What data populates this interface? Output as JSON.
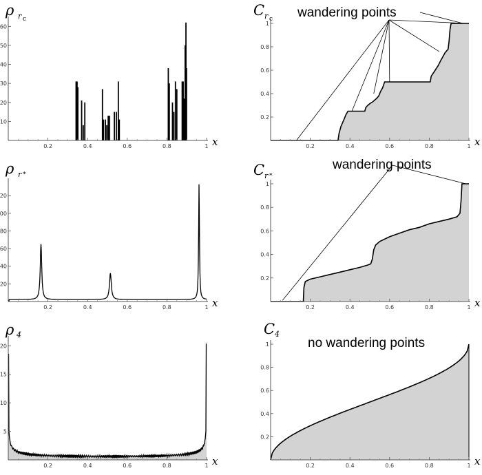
{
  "chart_data": [
    {
      "id": "rho_rc",
      "type": "histogram",
      "title": "ρ",
      "title_sub": "r",
      "title_subsub": "c",
      "xlabel": "x",
      "xlim": [
        0,
        1
      ],
      "ylim": [
        0,
        63
      ],
      "xticks": [
        0.2,
        0.4,
        0.6,
        0.8,
        1.0
      ],
      "yticks": [
        10,
        20,
        30,
        40,
        50,
        60
      ],
      "bars": [
        [
          0.342,
          31
        ],
        [
          0.347,
          31
        ],
        [
          0.351,
          28
        ],
        [
          0.37,
          21
        ],
        [
          0.378,
          8
        ],
        [
          0.386,
          20
        ],
        [
          0.475,
          27
        ],
        [
          0.48,
          11
        ],
        [
          0.49,
          11
        ],
        [
          0.497,
          8
        ],
        [
          0.504,
          13
        ],
        [
          0.511,
          13
        ],
        [
          0.535,
          15
        ],
        [
          0.545,
          15
        ],
        [
          0.555,
          31
        ],
        [
          0.56,
          11
        ],
        [
          0.807,
          38
        ],
        [
          0.812,
          30
        ],
        [
          0.828,
          20
        ],
        [
          0.835,
          15
        ],
        [
          0.843,
          31
        ],
        [
          0.85,
          27
        ],
        [
          0.877,
          31
        ],
        [
          0.882,
          31
        ],
        [
          0.887,
          22
        ],
        [
          0.892,
          50
        ],
        [
          0.896,
          62
        ],
        [
          0.899,
          38
        ]
      ]
    },
    {
      "id": "c_rc",
      "type": "area",
      "title": "C",
      "title_sub": "r",
      "title_subsub": "c",
      "xlabel": "x",
      "xlim": [
        0,
        1
      ],
      "ylim": [
        0,
        1
      ],
      "xticks": [
        0.2,
        0.4,
        0.6,
        0.8,
        1.0
      ],
      "yticks": [
        0.2,
        0.4,
        0.6,
        0.8,
        1.0
      ],
      "annotation": "wandering points",
      "steps": [
        [
          0,
          0
        ],
        [
          0.34,
          0
        ],
        [
          0.345,
          0.06
        ],
        [
          0.355,
          0.12
        ],
        [
          0.37,
          0.18
        ],
        [
          0.38,
          0.22
        ],
        [
          0.39,
          0.25
        ],
        [
          0.475,
          0.25
        ],
        [
          0.48,
          0.28
        ],
        [
          0.49,
          0.3
        ],
        [
          0.505,
          0.32
        ],
        [
          0.515,
          0.33
        ],
        [
          0.535,
          0.36
        ],
        [
          0.545,
          0.38
        ],
        [
          0.555,
          0.42
        ],
        [
          0.565,
          0.45
        ],
        [
          0.575,
          0.5
        ],
        [
          0.805,
          0.5
        ],
        [
          0.81,
          0.55
        ],
        [
          0.83,
          0.6
        ],
        [
          0.845,
          0.64
        ],
        [
          0.86,
          0.69
        ],
        [
          0.87,
          0.72
        ],
        [
          0.88,
          0.75
        ],
        [
          0.895,
          0.78
        ],
        [
          0.9,
          0.85
        ],
        [
          0.905,
          0.95
        ],
        [
          0.91,
          1.0
        ],
        [
          1.0,
          1.0
        ]
      ],
      "wandering_targets": [
        [
          0.13,
          0.0
        ],
        [
          0.41,
          0.25
        ],
        [
          0.52,
          0.4
        ],
        [
          0.6,
          0.5
        ],
        [
          0.85,
          0.76
        ],
        [
          0.99,
          1.0
        ]
      ]
    },
    {
      "id": "rho_rstar",
      "type": "line",
      "title": "ρ",
      "title_sub": "r",
      "title_subsub": "*",
      "xlabel": "x",
      "xlim": [
        0,
        1
      ],
      "ylim": [
        0,
        135
      ],
      "xticks": [
        0.2,
        0.4,
        0.6,
        0.8,
        1.0
      ],
      "yticks": [
        20,
        40,
        60,
        80,
        100,
        120
      ],
      "peaks": [
        [
          0.165,
          63,
          0.0045
        ],
        [
          0.515,
          30,
          0.0055
        ],
        [
          0.962,
          133,
          0.0025
        ]
      ]
    },
    {
      "id": "c_rstar",
      "type": "area",
      "title": "C",
      "title_sub": "r",
      "title_subsub": "*",
      "xlabel": "x",
      "xlim": [
        0,
        1
      ],
      "ylim": [
        0,
        1
      ],
      "xticks": [
        0.2,
        0.4,
        0.6,
        0.8,
        1.0
      ],
      "yticks": [
        0.2,
        0.4,
        0.6,
        0.8,
        1.0
      ],
      "annotation": "wandering points",
      "curve": [
        [
          0,
          0
        ],
        [
          0.165,
          0
        ],
        [
          0.168,
          0.12
        ],
        [
          0.175,
          0.17
        ],
        [
          0.2,
          0.19
        ],
        [
          0.25,
          0.21
        ],
        [
          0.3,
          0.23
        ],
        [
          0.35,
          0.25
        ],
        [
          0.4,
          0.27
        ],
        [
          0.45,
          0.29
        ],
        [
          0.49,
          0.31
        ],
        [
          0.505,
          0.32
        ],
        [
          0.513,
          0.36
        ],
        [
          0.52,
          0.44
        ],
        [
          0.53,
          0.48
        ],
        [
          0.55,
          0.51
        ],
        [
          0.6,
          0.55
        ],
        [
          0.65,
          0.58
        ],
        [
          0.7,
          0.61
        ],
        [
          0.75,
          0.63
        ],
        [
          0.8,
          0.66
        ],
        [
          0.85,
          0.68
        ],
        [
          0.9,
          0.7
        ],
        [
          0.94,
          0.72
        ],
        [
          0.955,
          0.75
        ],
        [
          0.96,
          0.85
        ],
        [
          0.965,
          1.0
        ],
        [
          1.0,
          1.0
        ]
      ],
      "wandering_targets": [
        [
          0.06,
          0.01
        ],
        [
          0.985,
          1.0
        ]
      ]
    },
    {
      "id": "rho_4",
      "type": "line",
      "title": "ρ",
      "title_sub": "4",
      "xlabel": "x",
      "xlim": [
        0,
        1
      ],
      "ylim": [
        0,
        21
      ],
      "xticks": [
        0.2,
        0.4,
        0.6,
        0.8,
        1.0
      ],
      "yticks": [
        5,
        10,
        15,
        20
      ]
    },
    {
      "id": "c_4",
      "type": "area",
      "title": "C",
      "title_sub": "4",
      "xlabel": "x",
      "xlim": [
        0,
        1
      ],
      "ylim": [
        0,
        1
      ],
      "xticks": [
        0.2,
        0.4,
        0.6,
        0.8,
        1.0
      ],
      "yticks": [
        0.2,
        0.4,
        0.6,
        0.8,
        1.0
      ],
      "annotation": "no wandering points"
    }
  ]
}
